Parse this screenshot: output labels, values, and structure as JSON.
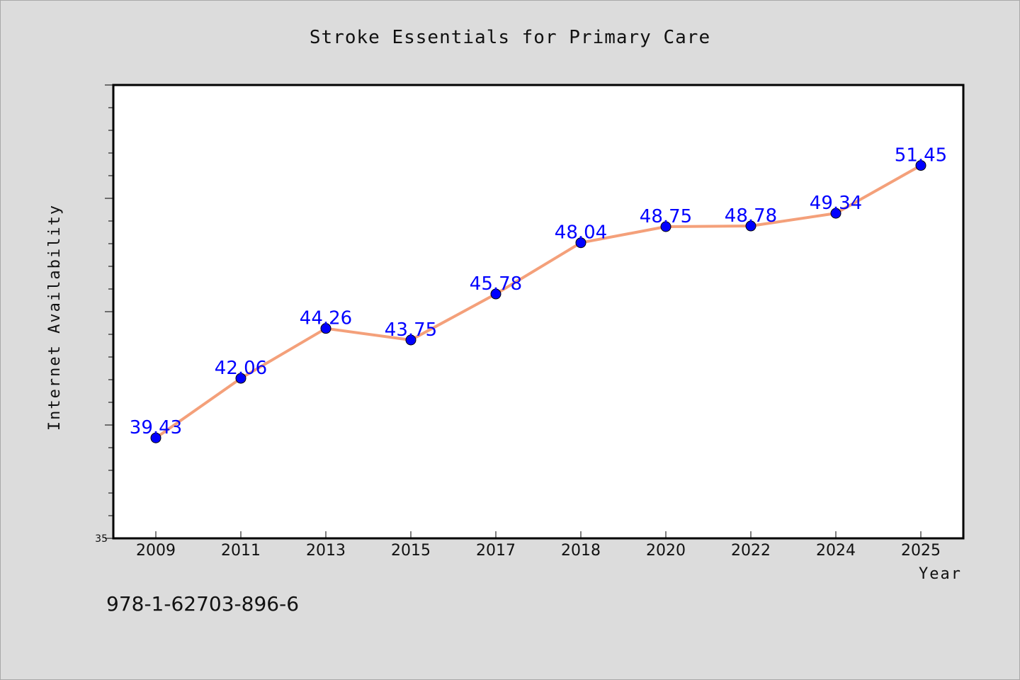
{
  "chart_data": {
    "type": "line",
    "title": "Stroke Essentials for Primary Care",
    "xlabel": "Year",
    "ylabel": "Internet Availability",
    "categories": [
      "2009",
      "2011",
      "2013",
      "2015",
      "2017",
      "2018",
      "2020",
      "2022",
      "2024",
      "2025"
    ],
    "series": [
      {
        "values": [
          39.43,
          42.06,
          44.26,
          43.75,
          45.78,
          48.04,
          48.75,
          48.78,
          49.34,
          51.45
        ],
        "data_labels": [
          "39.43",
          "42.06",
          "44.26",
          "43.75",
          "45.78",
          "48.04",
          "48.75",
          "48.78",
          "49.34",
          "51.45"
        ]
      }
    ],
    "ylim": [
      35,
      55
    ],
    "yticks_labeled": [
      "35"
    ],
    "grid": false,
    "line_color": "#f4a07a",
    "marker_color": "#0000ff",
    "label_color": "#0000ff",
    "plot_background": "#ffffff",
    "page_background": "#dcdcdc"
  },
  "footnote": "978-1-62703-896-6"
}
